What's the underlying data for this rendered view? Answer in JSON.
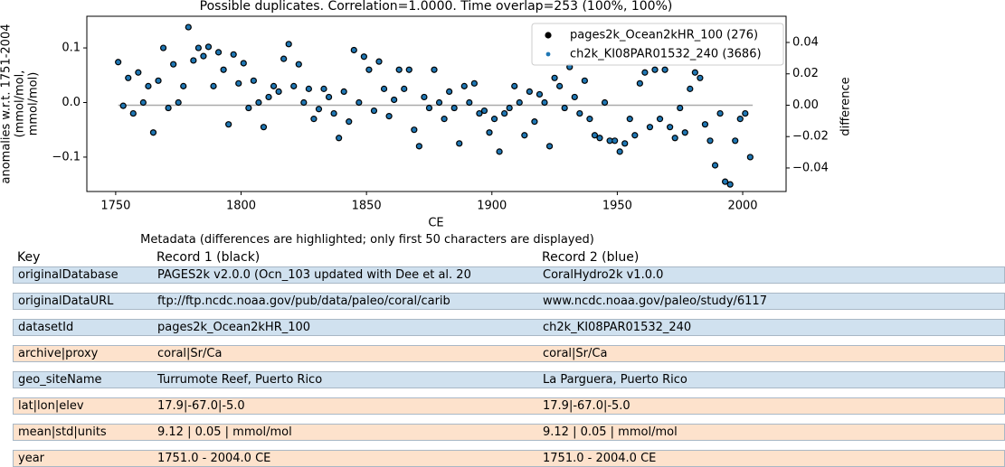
{
  "chart_data": {
    "type": "scatter",
    "title": "Possible duplicates. Correlation=1.0000. Time overlap=253 (100%, 100%)",
    "xlabel": "CE",
    "ylabel": [
      "anomalies w.r.t. 1751-2004",
      "(mmol/mol,",
      "mmol/mol)"
    ],
    "y2label": "difference",
    "xlim": [
      1738.5,
      2017.3
    ],
    "xticks": [
      1750,
      1800,
      1850,
      1900,
      1950,
      2000
    ],
    "ylim": [
      -0.163,
      0.158
    ],
    "yticks": [
      {
        "value": -0.1,
        "label": "−0.1"
      },
      {
        "value": 0,
        "label": "0.0"
      },
      0.1
    ],
    "y2lim": [
      -0.055,
      0.0567
    ],
    "y2ticks": [
      {
        "value": -0.04,
        "label": "−0.04"
      },
      {
        "value": -0.02,
        "label": "−0.02"
      },
      {
        "value": 0,
        "label": "0.00"
      },
      {
        "value": 0.02,
        "label": "0.02"
      },
      {
        "value": 0.04,
        "label": "0.04"
      }
    ],
    "legend": "upper right",
    "x": [
      1751,
      1753,
      1755,
      1757,
      1759,
      1761,
      1763,
      1765,
      1767,
      1769,
      1771,
      1773,
      1775,
      1777,
      1779,
      1781,
      1783,
      1785,
      1787,
      1789,
      1791,
      1793,
      1795,
      1797,
      1799,
      1801,
      1803,
      1805,
      1807,
      1809,
      1811,
      1813,
      1815,
      1817,
      1819,
      1821,
      1823,
      1825,
      1827,
      1829,
      1831,
      1833,
      1835,
      1837,
      1839,
      1841,
      1843,
      1845,
      1847,
      1849,
      1851,
      1853,
      1855,
      1857,
      1859,
      1861,
      1863,
      1865,
      1867,
      1869,
      1871,
      1873,
      1875,
      1877,
      1879,
      1881,
      1883,
      1885,
      1887,
      1889,
      1891,
      1893,
      1895,
      1897,
      1899,
      1901,
      1903,
      1905,
      1907,
      1909,
      1911,
      1913,
      1915,
      1917,
      1919,
      1921,
      1923,
      1925,
      1927,
      1929,
      1931,
      1933,
      1935,
      1937,
      1939,
      1941,
      1943,
      1945,
      1947,
      1949,
      1951,
      1953,
      1955,
      1957,
      1959,
      1961,
      1963,
      1965,
      1967,
      1969,
      1971,
      1973,
      1975,
      1977,
      1979,
      1981,
      1983,
      1985,
      1987,
      1989,
      1991,
      1993,
      1995,
      1997,
      1999,
      2001,
      2003
    ],
    "series": [
      {
        "name": "pages2k_Ocean2kHR_100 (276)",
        "color": "#000000",
        "values": [
          0.074,
          -0.006,
          0.045,
          -0.02,
          0.055,
          0,
          0.03,
          -0.055,
          0.04,
          0.1,
          -0.01,
          0.07,
          0,
          0.03,
          0.138,
          0.077,
          0.1,
          0.085,
          0.102,
          0.03,
          0.092,
          0.06,
          -0.04,
          0.088,
          0.035,
          0.072,
          -0.01,
          0.04,
          0,
          -0.045,
          0.01,
          0.03,
          0.02,
          0.08,
          0.107,
          0.03,
          0.07,
          0,
          0.025,
          -0.03,
          -0.012,
          0.025,
          0.01,
          -0.02,
          -0.065,
          0.02,
          -0.035,
          0.096,
          0,
          0.084,
          0.06,
          -0.015,
          0.075,
          0.025,
          -0.025,
          0.005,
          0.06,
          0.025,
          0.06,
          -0.05,
          -0.08,
          0.01,
          -0.01,
          0.06,
          0,
          -0.03,
          0.02,
          -0.01,
          -0.075,
          0.03,
          0,
          0.035,
          -0.02,
          -0.015,
          -0.055,
          -0.03,
          -0.09,
          -0.02,
          -0.01,
          0.03,
          0,
          -0.06,
          0.02,
          -0.035,
          0.015,
          0,
          -0.08,
          0.045,
          0.03,
          -0.01,
          0.065,
          0.01,
          -0.02,
          0.04,
          -0.03,
          -0.06,
          -0.065,
          0,
          -0.07,
          -0.07,
          -0.09,
          -0.075,
          -0.03,
          -0.06,
          0.035,
          0.055,
          -0.045,
          0.06,
          -0.03,
          0.06,
          -0.045,
          -0.065,
          -0.01,
          -0.055,
          0.025,
          0.055,
          0.045,
          -0.04,
          -0.07,
          -0.115,
          -0.02,
          -0.145,
          -0.15,
          -0.07,
          -0.03,
          -0.02,
          -0.1
        ]
      },
      {
        "name": "ch2k_KI08PAR01532_240 (3686)",
        "color": "#1f77b4",
        "values": [
          0.074,
          -0.006,
          0.045,
          -0.02,
          0.055,
          0,
          0.03,
          -0.055,
          0.04,
          0.1,
          -0.01,
          0.07,
          0,
          0.03,
          0.138,
          0.077,
          0.1,
          0.085,
          0.102,
          0.03,
          0.092,
          0.06,
          -0.04,
          0.088,
          0.035,
          0.072,
          -0.01,
          0.04,
          0,
          -0.045,
          0.01,
          0.03,
          0.02,
          0.08,
          0.107,
          0.03,
          0.07,
          0,
          0.025,
          -0.03,
          -0.012,
          0.025,
          0.01,
          -0.02,
          -0.065,
          0.02,
          -0.035,
          0.096,
          0,
          0.084,
          0.06,
          -0.015,
          0.075,
          0.025,
          -0.025,
          0.005,
          0.06,
          0.025,
          0.06,
          -0.05,
          -0.08,
          0.01,
          -0.01,
          0.06,
          0,
          -0.03,
          0.02,
          -0.01,
          -0.075,
          0.03,
          0,
          0.035,
          -0.02,
          -0.015,
          -0.055,
          -0.03,
          -0.09,
          -0.02,
          -0.01,
          0.03,
          0,
          -0.06,
          0.02,
          -0.035,
          0.015,
          0,
          -0.08,
          0.045,
          0.03,
          -0.01,
          0.065,
          0.01,
          -0.02,
          0.04,
          -0.03,
          -0.06,
          -0.065,
          0,
          -0.07,
          -0.07,
          -0.09,
          -0.075,
          -0.03,
          -0.06,
          0.035,
          0.055,
          -0.045,
          0.06,
          -0.03,
          0.06,
          -0.045,
          -0.065,
          -0.01,
          -0.055,
          0.025,
          0.055,
          0.045,
          -0.04,
          -0.07,
          -0.115,
          -0.02,
          -0.145,
          -0.15,
          -0.07,
          -0.03,
          -0.02,
          -0.1
        ]
      }
    ],
    "difference": {
      "axis": "y2",
      "color": "#aaaaaa",
      "x": [
        1751,
        2004
      ],
      "values": [
        0,
        0
      ]
    }
  },
  "table": {
    "caption": "Metadata (differences are highlighted; only first 50 characters are displayed)",
    "header": [
      "Key",
      "Record 1 (black)",
      "Record 2 (blue)"
    ],
    "rows": [
      {
        "differs": true,
        "cells": [
          "originalDatabase",
          "PAGES2k v2.0.0 (Ocn_103 updated with Dee et al. 20",
          "CoralHydro2k v1.0.0"
        ]
      },
      {
        "differs": true,
        "cells": [
          "originalDataURL",
          "ftp://ftp.ncdc.noaa.gov/pub/data/paleo/coral/carib",
          "www.ncdc.noaa.gov/paleo/study/6117"
        ]
      },
      {
        "differs": true,
        "cells": [
          "datasetId",
          "pages2k_Ocean2kHR_100",
          "ch2k_KI08PAR01532_240"
        ]
      },
      {
        "differs": false,
        "cells": [
          "archive|proxy",
          "coral|Sr/Ca",
          "coral|Sr/Ca"
        ]
      },
      {
        "differs": true,
        "cells": [
          "geo_siteName",
          "Turrumote Reef, Puerto Rico",
          "La Parguera, Puerto Rico"
        ]
      },
      {
        "differs": false,
        "cells": [
          "lat|lon|elev",
          "17.9|-67.0|-5.0",
          "17.9|-67.0|-5.0"
        ]
      },
      {
        "differs": false,
        "cells": [
          "mean|std|units",
          "9.12 | 0.05 | mmol/mol",
          "9.12 | 0.05 | mmol/mol"
        ]
      },
      {
        "differs": false,
        "cells": [
          "year",
          "1751.0 - 2004.0 CE",
          "1751.0 - 2004.0 CE"
        ]
      }
    ]
  }
}
